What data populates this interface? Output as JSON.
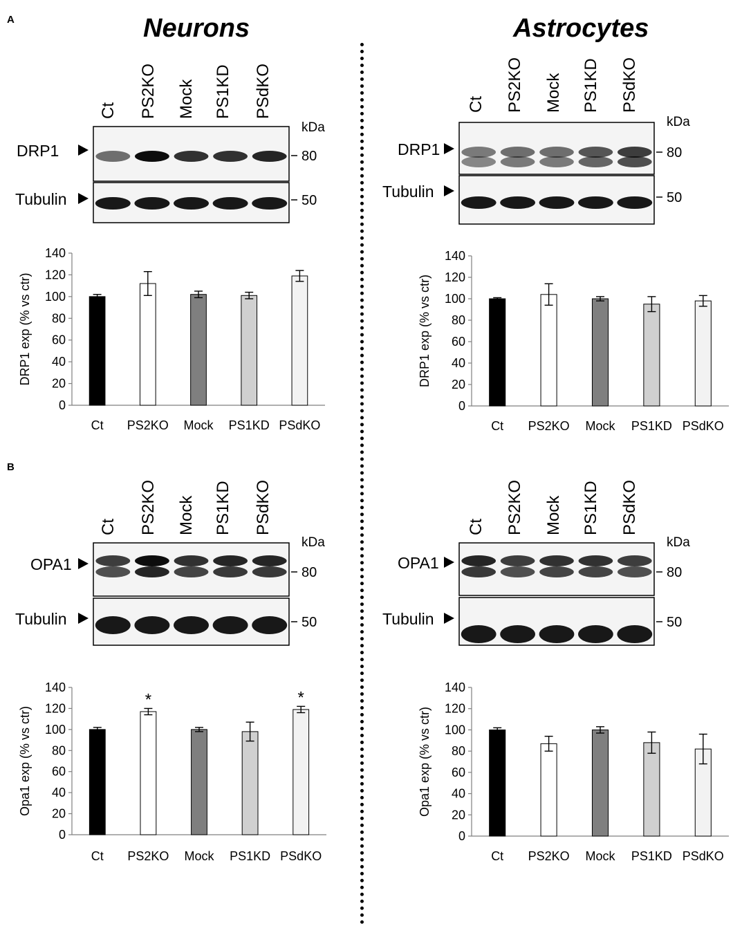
{
  "panel_labels": {
    "a": "A",
    "b": "B"
  },
  "headers": {
    "left": "Neurons",
    "right": "Astrocytes"
  },
  "blots": [
    {
      "id": "a-neurons",
      "lanes": [
        "Ct",
        "PS2KO",
        "Mock",
        "PS1KD",
        "PSdKO"
      ],
      "kda_label": "kDa",
      "top_target": "DRP1",
      "top_marker": "80",
      "bottom_target": "Tubulin",
      "bottom_marker": "50"
    },
    {
      "id": "a-astro",
      "lanes": [
        "Ct",
        "PS2KO",
        "Mock",
        "PS1KD",
        "PSdKO"
      ],
      "kda_label": "kDa",
      "top_target": "DRP1",
      "top_marker": "80",
      "bottom_target": "Tubulin",
      "bottom_marker": "50"
    },
    {
      "id": "b-neurons",
      "lanes": [
        "Ct",
        "PS2KO",
        "Mock",
        "PS1KD",
        "PSdKO"
      ],
      "kda_label": "kDa",
      "top_target": "OPA1",
      "top_marker": "80",
      "bottom_target": "Tubulin",
      "bottom_marker": "50"
    },
    {
      "id": "b-astro",
      "lanes": [
        "Ct",
        "PS2KO",
        "Mock",
        "PS1KD",
        "PSdKO"
      ],
      "kda_label": "kDa",
      "top_target": "OPA1",
      "top_marker": "80",
      "bottom_target": "Tubulin",
      "bottom_marker": "50"
    }
  ],
  "colors": {
    "Ct": "#000000",
    "PS2KO": "#ffffff",
    "Mock": "#7f7f7f",
    "PS1KD": "#d0d0d0",
    "PSdKO": "#f2f2f2"
  },
  "chart_data": [
    {
      "type": "bar",
      "categories": [
        "Ct",
        "PS2KO",
        "Mock",
        "PS1KD",
        "PSdKO"
      ],
      "values": [
        100,
        112,
        102,
        101,
        119
      ],
      "errors": [
        2,
        11,
        3,
        3,
        5
      ],
      "ylabel": "DRP1 exp (% vs ctr)",
      "ylim": [
        0,
        140
      ],
      "yticks": [
        0,
        20,
        40,
        60,
        80,
        100,
        120,
        140
      ],
      "annotations": [
        "",
        "",
        "",
        "",
        ""
      ]
    },
    {
      "type": "bar",
      "categories": [
        "Ct",
        "PS2KO",
        "Mock",
        "PS1KD",
        "PSdKO"
      ],
      "values": [
        100,
        104,
        100,
        95,
        98
      ],
      "errors": [
        1,
        10,
        2,
        7,
        5
      ],
      "ylabel": "DRP1 exp (% vs ctr)",
      "ylim": [
        0,
        140
      ],
      "yticks": [
        0,
        20,
        40,
        60,
        80,
        100,
        120,
        140
      ],
      "annotations": [
        "",
        "",
        "",
        "",
        ""
      ]
    },
    {
      "type": "bar",
      "categories": [
        "Ct",
        "PS2KO",
        "Mock",
        "PS1KD",
        "PSdKO"
      ],
      "values": [
        100,
        117,
        100,
        98,
        119
      ],
      "errors": [
        2,
        3,
        2,
        9,
        3
      ],
      "ylabel": "Opa1 exp (% vs ctr)",
      "ylim": [
        0,
        140
      ],
      "yticks": [
        0,
        20,
        40,
        60,
        80,
        100,
        120,
        140
      ],
      "annotations": [
        "",
        "*",
        "",
        "",
        "*"
      ]
    },
    {
      "type": "bar",
      "categories": [
        "Ct",
        "PS2KO",
        "Mock",
        "PS1KD",
        "PSdKO"
      ],
      "values": [
        100,
        87,
        100,
        88,
        82
      ],
      "errors": [
        2,
        7,
        3,
        10,
        14
      ],
      "ylabel": "Opa1 exp (% vs ctr)",
      "ylim": [
        0,
        140
      ],
      "yticks": [
        0,
        20,
        40,
        60,
        80,
        100,
        120,
        140
      ],
      "annotations": [
        "",
        "",
        "",
        "",
        ""
      ]
    }
  ]
}
